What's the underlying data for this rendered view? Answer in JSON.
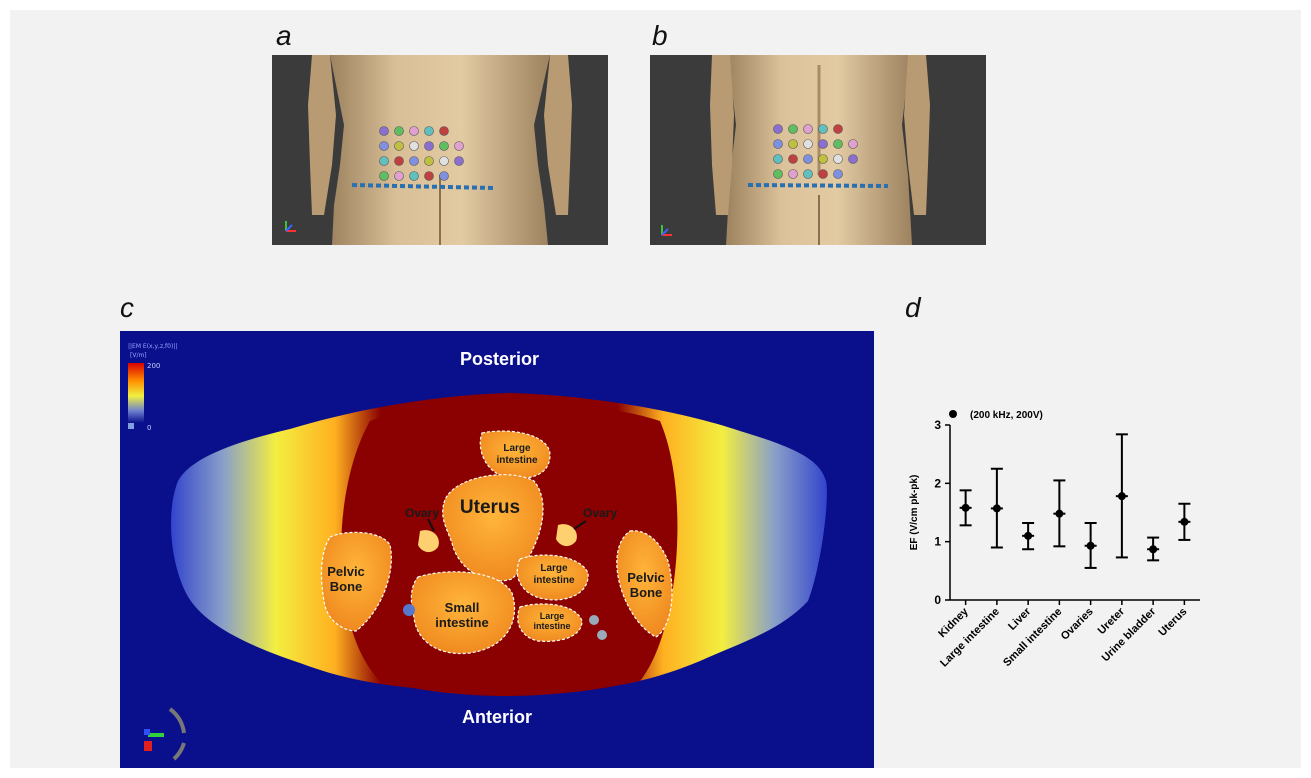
{
  "panels": {
    "a": {
      "letter": "a"
    },
    "b": {
      "letter": "b"
    },
    "c": {
      "letter": "c",
      "colorbar_title": "||EM E(x,y,z,f0)||",
      "colorbar_unit": "[V/m]",
      "colorbar_max": "200",
      "colorbar_min": "0",
      "posterior": "Posterior",
      "anterior": "Anterior",
      "organs": {
        "large_intestine_top": "Large intestine",
        "uterus": "Uterus",
        "ovary_left": "Ovary",
        "ovary_right": "Ovary",
        "pelvic_bone_left": "Pelvic Bone",
        "pelvic_bone_right": "Pelvic Bone",
        "small_intestine": "Small intestine",
        "large_intestine_mid": "Large intestine",
        "large_intestine_low": "Large intestine"
      }
    },
    "d": {
      "letter": "d"
    }
  },
  "colors": {
    "render_bg": "#3b3b3b",
    "skin": "#d2b48c",
    "sim_bg": "#0a0f8c",
    "tissue_dark": "#8b0000",
    "dashed_line": "#2a6fb0"
  },
  "chart_data": {
    "type": "scatter",
    "title": "",
    "legend": "(200 kHz, 200V)",
    "legend_position": "top-left",
    "xlabel": "",
    "ylabel": "EF (V/cm pk-pk)",
    "ylim": [
      0,
      3
    ],
    "yticks": [
      "0",
      "1",
      "2",
      "3"
    ],
    "categories": [
      "Kidney",
      "Large intestine",
      "Liver",
      "Small intestine",
      "Ovaries",
      "Ureter",
      "Urine bladder",
      "Uterus"
    ],
    "series": [
      {
        "mean": [
          1.58,
          1.57,
          1.1,
          1.48,
          0.93,
          1.78,
          0.87,
          1.34
        ],
        "low": [
          1.28,
          0.9,
          0.87,
          0.92,
          0.55,
          0.73,
          0.68,
          1.03
        ],
        "high": [
          1.88,
          2.25,
          1.32,
          2.05,
          1.32,
          2.84,
          1.07,
          1.65
        ]
      }
    ]
  }
}
